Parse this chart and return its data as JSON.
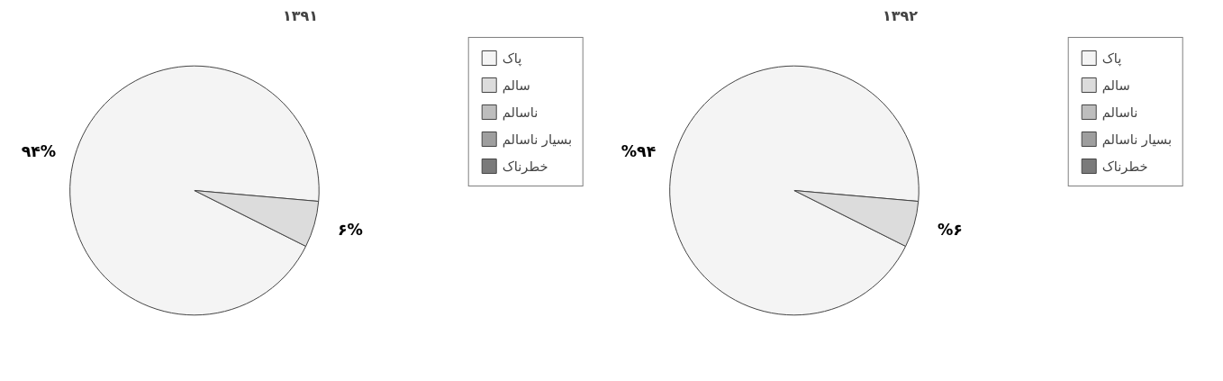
{
  "chart_data": [
    {
      "type": "pie",
      "title": "۱۳۹۱",
      "categories": [
        "پاک",
        "سالم",
        "ناسالم",
        "بسیار ناسالم",
        "خطرناک"
      ],
      "values": [
        94,
        6,
        0,
        0,
        0
      ],
      "colors": [
        "#f4f4f4",
        "#dcdcdc",
        "#bdbdbd",
        "#9e9e9e",
        "#7a7a7a"
      ],
      "value_labels": [
        "۹۴%",
        "۶%",
        null,
        null,
        null
      ],
      "legend": "right"
    },
    {
      "type": "pie",
      "title": "۱۳۹۲",
      "categories": [
        "پاک",
        "سالم",
        "ناسالم",
        "بسیار ناسالم",
        "خطرناک"
      ],
      "values": [
        94,
        6,
        0,
        0,
        0
      ],
      "colors": [
        "#f4f4f4",
        "#dcdcdc",
        "#bdbdbd",
        "#9e9e9e",
        "#7a7a7a"
      ],
      "value_labels": [
        "%۹۴",
        "%۶",
        null,
        null,
        null
      ],
      "legend": "right"
    }
  ]
}
